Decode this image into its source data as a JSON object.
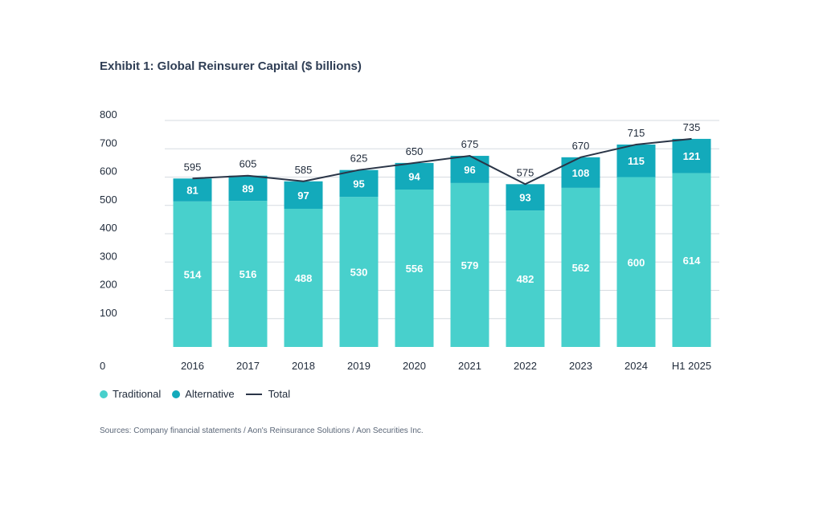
{
  "colors": {
    "traditional": "#48d0cc",
    "alternative": "#13aabb",
    "total": "#2a3547",
    "grid": "#d6dbe1"
  },
  "chart_data": {
    "type": "bar",
    "stacked": true,
    "title": "Exhibit 1: Global Reinsurer Capital ($ billions)",
    "xlabel": "",
    "ylabel": "",
    "ylim": [
      0,
      800
    ],
    "yticks": [
      0,
      100,
      200,
      300,
      400,
      500,
      600,
      700,
      800
    ],
    "categories": [
      "2016",
      "2017",
      "2018",
      "2019",
      "2020",
      "2021",
      "2022",
      "2023",
      "2024",
      "H1 2025"
    ],
    "series": [
      {
        "name": "Traditional",
        "type": "bar",
        "values": [
          514,
          516,
          488,
          530,
          556,
          579,
          482,
          562,
          600,
          614
        ]
      },
      {
        "name": "Alternative",
        "type": "bar",
        "values": [
          81,
          89,
          97,
          95,
          94,
          96,
          93,
          108,
          115,
          121
        ]
      },
      {
        "name": "Total",
        "type": "line",
        "values": [
          595,
          605,
          585,
          625,
          650,
          675,
          575,
          670,
          715,
          735
        ]
      }
    ],
    "legend": "bottom-left",
    "grid": true
  },
  "legend": {
    "traditional": "Traditional",
    "alternative": "Alternative",
    "total": "Total"
  },
  "source": "Sources: Company financial statements / Aon's Reinsurance Solutions / Aon Securities Inc."
}
